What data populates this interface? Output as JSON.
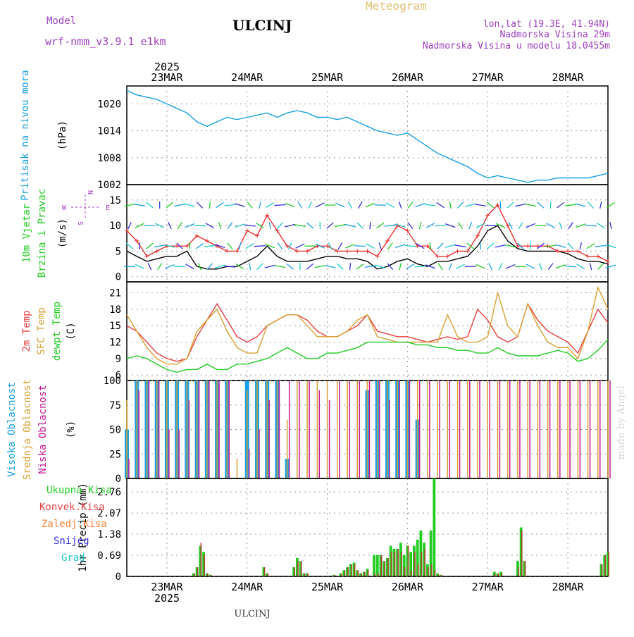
{
  "header": {
    "model_label": "Model",
    "model_name": "wrf-nmm_v3.9.1 e1km",
    "location": "ULCINJ",
    "product": "Meteogram",
    "lonlat": "lon,lat (19.3E, 41.94N)",
    "elevation": "Nadmorska Visina 29m",
    "model_elevation": "Nadmorska Visina u modelu 18.0455m",
    "footer": "ULCINJ",
    "watermark": "made by Angel",
    "year_top": "2025",
    "year_bottom": "2025"
  },
  "colors": {
    "pressure": "#1aa0e6",
    "wind_speed": "#000000",
    "gust": "#e83030",
    "t2m": "#e84040",
    "sfc": "#d8a030",
    "dewpoint": "#22cc22",
    "high_cloud": "#1aa0e6",
    "mid_cloud": "#d8a030",
    "low_cloud": "#c81890",
    "precip_total": "#22cc22",
    "precip_conv": "#c03030",
    "precip_frz": "#ff8030",
    "snow": "#3030e0",
    "graupel": "#20c8c8"
  },
  "axis": {
    "x_start": 0,
    "x_end": 144,
    "dates": [
      {
        "label": "23MAR",
        "hour": 12
      },
      {
        "label": "24MAR",
        "hour": 36
      },
      {
        "label": "25MAR",
        "hour": 60
      },
      {
        "label": "26MAR",
        "hour": 84
      },
      {
        "label": "27MAR",
        "hour": 108
      },
      {
        "label": "28MAR",
        "hour": 132
      }
    ]
  },
  "chart_data": [
    {
      "type": "line",
      "panel": "pressure",
      "ylabel": [
        "Pritisak na nivou mora",
        "(hPa)"
      ],
      "ylim": [
        1002,
        1024
      ],
      "yticks": [
        1002,
        1008,
        1014,
        1020
      ],
      "grid": true,
      "x": [
        0,
        3,
        6,
        9,
        12,
        15,
        18,
        21,
        24,
        27,
        30,
        33,
        36,
        39,
        42,
        45,
        48,
        51,
        54,
        57,
        60,
        63,
        66,
        69,
        72,
        75,
        78,
        81,
        84,
        87,
        90,
        93,
        96,
        99,
        102,
        105,
        108,
        111,
        114,
        117,
        120,
        123,
        126,
        129,
        132,
        135,
        138,
        141,
        144
      ],
      "series": [
        {
          "key": "pressure",
          "values": [
            1023,
            1022,
            1021.5,
            1021,
            1020,
            1019,
            1018,
            1016,
            1015,
            1016,
            1017,
            1016.5,
            1017,
            1017.5,
            1018,
            1017,
            1018,
            1018.5,
            1018,
            1017,
            1017,
            1016.5,
            1017,
            1016,
            1015,
            1014,
            1013.5,
            1013,
            1013.5,
            1012,
            1010.5,
            1009,
            1008,
            1007,
            1006,
            1004.5,
            1003.5,
            1004,
            1003.5,
            1003,
            1002.5,
            1003,
            1003,
            1003.5,
            1003.5,
            1003.5,
            1003.5,
            1004,
            1004.5
          ]
        }
      ]
    },
    {
      "type": "line",
      "panel": "wind",
      "ylabel": [
        "10m Vjetar",
        "Brzina i Pravac",
        "(m/s)"
      ],
      "compass": {
        "n": "N",
        "s": "S",
        "e": "E",
        "w": "W"
      },
      "ylim": [
        -1,
        18
      ],
      "yticks": [
        0,
        5,
        10,
        15
      ],
      "grid": true,
      "x": [
        0,
        3,
        6,
        9,
        12,
        15,
        18,
        21,
        24,
        27,
        30,
        33,
        36,
        39,
        42,
        45,
        48,
        51,
        54,
        57,
        60,
        63,
        66,
        69,
        72,
        75,
        78,
        81,
        84,
        87,
        90,
        93,
        96,
        99,
        102,
        105,
        108,
        111,
        114,
        117,
        120,
        123,
        126,
        129,
        132,
        135,
        138,
        141,
        144
      ],
      "series": [
        {
          "key": "wind_speed",
          "name": "speed",
          "values": [
            5,
            4,
            3,
            3.5,
            4,
            4,
            5,
            2,
            1.5,
            1.5,
            2,
            2,
            3,
            4,
            6,
            4,
            3,
            3,
            3,
            3.5,
            4,
            4,
            3.5,
            3.5,
            3,
            1.5,
            2,
            3,
            3.5,
            2.5,
            2,
            3,
            3,
            3.5,
            4,
            6,
            9,
            10,
            7,
            5.5,
            5,
            5,
            5,
            5,
            4.5,
            3.5,
            3,
            3,
            2.5
          ]
        },
        {
          "key": "gust",
          "name": "gust",
          "values": [
            9,
            7,
            4,
            5,
            6,
            6,
            6,
            8,
            7,
            6,
            5,
            5,
            9,
            8,
            12,
            9,
            6,
            5,
            5,
            6,
            6,
            5,
            5,
            5,
            5,
            4,
            7,
            10,
            9,
            6,
            6,
            4,
            4,
            5,
            5,
            8,
            12,
            14,
            10,
            6,
            6,
            6,
            6,
            5,
            5,
            5,
            4,
            4,
            3
          ]
        }
      ]
    },
    {
      "type": "line",
      "panel": "temperature",
      "ylabel": [
        "2m Temp",
        "SFC Temp",
        "dewpt Temp",
        "(C)"
      ],
      "ylim": [
        5,
        23
      ],
      "yticks": [
        6,
        9,
        12,
        15,
        18,
        21
      ],
      "grid": true,
      "x": [
        0,
        3,
        6,
        9,
        12,
        15,
        18,
        21,
        24,
        27,
        30,
        33,
        36,
        39,
        42,
        45,
        48,
        51,
        54,
        57,
        60,
        63,
        66,
        69,
        72,
        75,
        78,
        81,
        84,
        87,
        90,
        93,
        96,
        99,
        102,
        105,
        108,
        111,
        114,
        117,
        120,
        123,
        126,
        129,
        132,
        135,
        138,
        141,
        144
      ],
      "series": [
        {
          "key": "t2m",
          "name": "2m Temp",
          "values": [
            15,
            14,
            12,
            10,
            9,
            8.5,
            9,
            13,
            16,
            19,
            16,
            13,
            12,
            13,
            15,
            16,
            17,
            17,
            16,
            14,
            13,
            13,
            14,
            15,
            17,
            14,
            13.5,
            13,
            13,
            12.5,
            12,
            12.5,
            13,
            12.5,
            13,
            18,
            16,
            13,
            12,
            13,
            19,
            16,
            14,
            13,
            12,
            10,
            14,
            18,
            15.5
          ]
        },
        {
          "key": "sfc",
          "name": "SFC Temp",
          "values": [
            17,
            14,
            11,
            9,
            8,
            8,
            9,
            14,
            16,
            18,
            14,
            11,
            10,
            10,
            15,
            16,
            17,
            17,
            15,
            13,
            13,
            13,
            14,
            16,
            17,
            13,
            12.5,
            12,
            12,
            12,
            12,
            12,
            17,
            13,
            12,
            12,
            13,
            21,
            15,
            13,
            19,
            15,
            12,
            11,
            11,
            9,
            14,
            22,
            18
          ]
        },
        {
          "key": "dewpoint",
          "name": "dewpt Temp",
          "values": [
            9,
            9.5,
            9,
            8,
            7,
            6.5,
            7,
            7,
            8,
            7,
            7,
            8,
            8,
            8.5,
            9,
            10,
            11,
            10,
            9,
            9,
            10,
            10,
            10.5,
            11,
            12,
            12,
            12,
            12,
            12,
            11.5,
            11.5,
            11,
            11,
            10.5,
            10.5,
            10,
            10,
            11,
            10,
            9.5,
            9.5,
            9.5,
            10,
            10.5,
            10,
            8.5,
            9,
            10.5,
            12.5
          ]
        }
      ]
    },
    {
      "type": "bar",
      "panel": "clouds",
      "ylabel": [
        "Visoka Oblacnost",
        "Srednja Oblacnost",
        "Niska Oblacnost",
        "(%)"
      ],
      "ylim": [
        0,
        100
      ],
      "yticks": [
        0,
        25,
        50,
        75,
        100
      ],
      "grid": true,
      "x": [
        0,
        3,
        6,
        9,
        12,
        15,
        18,
        21,
        24,
        27,
        30,
        33,
        36,
        39,
        42,
        45,
        48,
        51,
        54,
        57,
        60,
        63,
        66,
        69,
        72,
        75,
        78,
        81,
        84,
        87,
        90,
        93,
        96,
        99,
        102,
        105,
        108,
        111,
        114,
        117,
        120,
        123,
        126,
        129,
        132,
        135,
        138,
        141,
        144
      ],
      "series": [
        {
          "key": "high_cloud",
          "name": "Visoka Oblacnost",
          "values": [
            50,
            100,
            100,
            100,
            100,
            100,
            100,
            100,
            100,
            100,
            100,
            0,
            100,
            100,
            100,
            100,
            20,
            0,
            0,
            0,
            0,
            0,
            0,
            0,
            90,
            100,
            100,
            100,
            100,
            60,
            0,
            0,
            0,
            0,
            0,
            0,
            0,
            0,
            0,
            0,
            0,
            0,
            0,
            0,
            0,
            0,
            0,
            0,
            0
          ]
        },
        {
          "key": "mid_cloud",
          "name": "Srednja Oblacnost",
          "values": [
            80,
            100,
            100,
            100,
            100,
            100,
            100,
            100,
            100,
            100,
            100,
            20,
            90,
            100,
            100,
            100,
            60,
            100,
            100,
            100,
            100,
            100,
            100,
            100,
            100,
            100,
            100,
            100,
            100,
            100,
            100,
            100,
            100,
            100,
            100,
            100,
            100,
            100,
            100,
            100,
            100,
            100,
            100,
            100,
            100,
            100,
            100,
            100,
            100
          ]
        },
        {
          "key": "low_cloud",
          "name": "Niska Oblacnost",
          "values": [
            20,
            90,
            100,
            100,
            50,
            50,
            80,
            100,
            100,
            100,
            100,
            0,
            30,
            50,
            80,
            100,
            100,
            100,
            100,
            90,
            80,
            100,
            100,
            100,
            100,
            100,
            80,
            100,
            100,
            100,
            100,
            100,
            100,
            100,
            100,
            100,
            100,
            100,
            100,
            100,
            100,
            100,
            100,
            100,
            100,
            100,
            100,
            100,
            100
          ]
        }
      ]
    },
    {
      "type": "bar",
      "panel": "precip",
      "ylabel": [
        "1hr Precip (mm)"
      ],
      "legend": [
        "Ukupna Kisa",
        "Konvek.Kisa",
        "Zaledj.Kisa",
        "Snijeg",
        "Grad"
      ],
      "ylim": [
        0,
        3.2
      ],
      "yticks": [
        0,
        0.69,
        1.38,
        2.07,
        2.76
      ],
      "grid": true,
      "x": [
        20,
        21,
        22,
        23,
        24,
        25,
        41,
        42,
        50,
        51,
        52,
        53,
        54,
        62,
        64,
        65,
        66,
        67,
        68,
        69,
        70,
        71,
        72,
        74,
        75,
        76,
        77,
        78,
        79,
        80,
        81,
        82,
        83,
        84,
        85,
        86,
        87,
        88,
        89,
        90,
        91,
        92,
        93,
        94,
        110,
        111,
        112,
        117,
        118,
        119,
        142,
        143,
        144
      ],
      "series": [
        {
          "key": "precip_total",
          "name": "Ukupna Kisa",
          "values": [
            0.1,
            0.3,
            1.0,
            0.8,
            0.1,
            0.05,
            0.3,
            0.1,
            0.3,
            0.6,
            0.5,
            0.1,
            0.1,
            0.05,
            0.1,
            0.2,
            0.3,
            0.4,
            0.45,
            0.2,
            0.1,
            0.15,
            0.25,
            0.7,
            0.7,
            0.7,
            0.5,
            0.6,
            1.0,
            0.9,
            0.9,
            1.1,
            0.7,
            1.0,
            0.8,
            1.0,
            1.2,
            1.5,
            1.1,
            0.4,
            1.5,
            3.2,
            0.1,
            0.05,
            0.15,
            0.1,
            0.15,
            0.5,
            1.6,
            0.5,
            0.4,
            0.7,
            0.8
          ]
        },
        {
          "key": "precip_conv",
          "name": "Konvek.Kisa",
          "values": [
            0.1,
            0.3,
            1.1,
            0.7,
            0.1,
            0.05,
            0.3,
            0.1,
            0.3,
            0.5,
            0.5,
            0.1,
            0.1,
            0.05,
            0.1,
            0.2,
            0.3,
            0.4,
            0.4,
            0.2,
            0.1,
            0.15,
            0.2,
            0.1,
            0.1,
            0.7,
            0.5,
            0.6,
            0.8,
            0.8,
            0.9,
            0.8,
            0.3,
            1.0,
            0.2,
            0.8,
            0.4,
            0.8,
            0.9,
            0.3,
            0.4,
            0.2,
            0.05,
            0.05,
            0.1,
            0.1,
            0.1,
            0.3,
            1.5,
            0.5,
            0.4,
            0.7,
            0.8
          ]
        },
        {
          "key": "precip_frz",
          "name": "Zaledj.Kisa",
          "values": [
            0,
            0,
            0,
            0,
            0,
            0,
            0,
            0,
            0,
            0,
            0,
            0,
            0,
            0,
            0,
            0,
            0,
            0,
            0,
            0,
            0,
            0,
            0,
            0,
            0,
            0,
            0,
            0,
            0,
            0,
            0,
            0,
            0,
            0,
            0,
            0,
            0,
            0,
            0,
            0,
            0,
            0,
            0,
            0,
            0,
            0,
            0,
            0,
            0,
            0,
            0,
            0,
            0
          ]
        },
        {
          "key": "snow",
          "name": "Snijeg",
          "values": [
            0,
            0,
            0,
            0,
            0,
            0,
            0,
            0,
            0,
            0,
            0,
            0,
            0,
            0,
            0,
            0,
            0,
            0,
            0,
            0,
            0,
            0,
            0,
            0,
            0,
            0,
            0,
            0,
            0,
            0,
            0,
            0,
            0,
            0,
            0,
            0,
            0,
            0,
            0,
            0,
            0,
            0,
            0,
            0,
            0,
            0,
            0,
            0,
            0,
            0,
            0,
            0,
            0
          ]
        },
        {
          "key": "graupel",
          "name": "Grad",
          "values": [
            0,
            0,
            0,
            0,
            0,
            0,
            0,
            0,
            0,
            0,
            0,
            0,
            0,
            0,
            0,
            0,
            0,
            0,
            0,
            0,
            0,
            0,
            0,
            0,
            0,
            0,
            0,
            0,
            0,
            0,
            0,
            0,
            0,
            0,
            0,
            0,
            0,
            0,
            0,
            0,
            0,
            0,
            0,
            0,
            0,
            0,
            0,
            0,
            0,
            0,
            0,
            0,
            0
          ]
        }
      ]
    }
  ]
}
